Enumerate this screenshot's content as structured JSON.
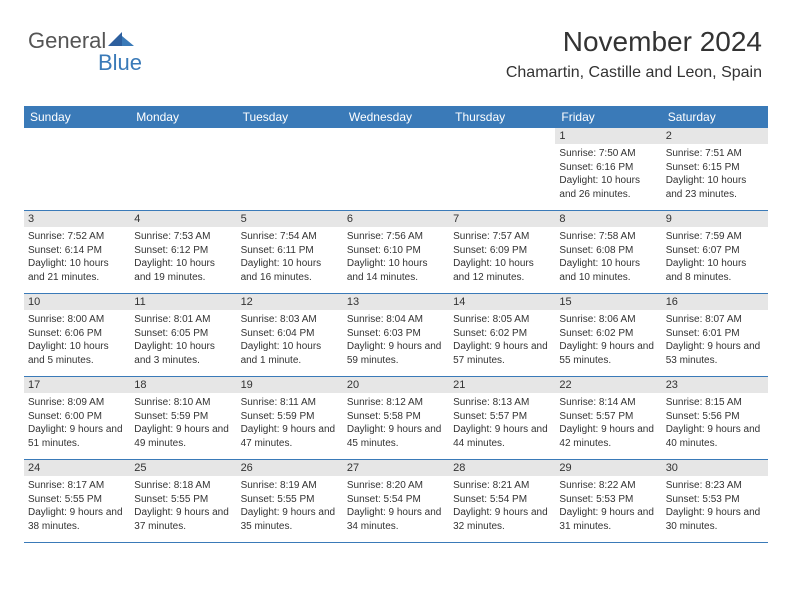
{
  "logo": {
    "text1": "General",
    "text2": "Blue"
  },
  "title": "November 2024",
  "location": "Chamartin, Castille and Leon, Spain",
  "colors": {
    "header_bg": "#3a7ab8",
    "header_text": "#ffffff",
    "daynum_bg": "#e6e6e6",
    "border": "#3a7ab8",
    "text": "#333333",
    "logo_gray": "#555555",
    "logo_blue": "#3a7ab8"
  },
  "day_names": [
    "Sunday",
    "Monday",
    "Tuesday",
    "Wednesday",
    "Thursday",
    "Friday",
    "Saturday"
  ],
  "weeks": [
    [
      {
        "n": "",
        "sunrise": "",
        "sunset": "",
        "daylight": ""
      },
      {
        "n": "",
        "sunrise": "",
        "sunset": "",
        "daylight": ""
      },
      {
        "n": "",
        "sunrise": "",
        "sunset": "",
        "daylight": ""
      },
      {
        "n": "",
        "sunrise": "",
        "sunset": "",
        "daylight": ""
      },
      {
        "n": "",
        "sunrise": "",
        "sunset": "",
        "daylight": ""
      },
      {
        "n": "1",
        "sunrise": "Sunrise: 7:50 AM",
        "sunset": "Sunset: 6:16 PM",
        "daylight": "Daylight: 10 hours and 26 minutes."
      },
      {
        "n": "2",
        "sunrise": "Sunrise: 7:51 AM",
        "sunset": "Sunset: 6:15 PM",
        "daylight": "Daylight: 10 hours and 23 minutes."
      }
    ],
    [
      {
        "n": "3",
        "sunrise": "Sunrise: 7:52 AM",
        "sunset": "Sunset: 6:14 PM",
        "daylight": "Daylight: 10 hours and 21 minutes."
      },
      {
        "n": "4",
        "sunrise": "Sunrise: 7:53 AM",
        "sunset": "Sunset: 6:12 PM",
        "daylight": "Daylight: 10 hours and 19 minutes."
      },
      {
        "n": "5",
        "sunrise": "Sunrise: 7:54 AM",
        "sunset": "Sunset: 6:11 PM",
        "daylight": "Daylight: 10 hours and 16 minutes."
      },
      {
        "n": "6",
        "sunrise": "Sunrise: 7:56 AM",
        "sunset": "Sunset: 6:10 PM",
        "daylight": "Daylight: 10 hours and 14 minutes."
      },
      {
        "n": "7",
        "sunrise": "Sunrise: 7:57 AM",
        "sunset": "Sunset: 6:09 PM",
        "daylight": "Daylight: 10 hours and 12 minutes."
      },
      {
        "n": "8",
        "sunrise": "Sunrise: 7:58 AM",
        "sunset": "Sunset: 6:08 PM",
        "daylight": "Daylight: 10 hours and 10 minutes."
      },
      {
        "n": "9",
        "sunrise": "Sunrise: 7:59 AM",
        "sunset": "Sunset: 6:07 PM",
        "daylight": "Daylight: 10 hours and 8 minutes."
      }
    ],
    [
      {
        "n": "10",
        "sunrise": "Sunrise: 8:00 AM",
        "sunset": "Sunset: 6:06 PM",
        "daylight": "Daylight: 10 hours and 5 minutes."
      },
      {
        "n": "11",
        "sunrise": "Sunrise: 8:01 AM",
        "sunset": "Sunset: 6:05 PM",
        "daylight": "Daylight: 10 hours and 3 minutes."
      },
      {
        "n": "12",
        "sunrise": "Sunrise: 8:03 AM",
        "sunset": "Sunset: 6:04 PM",
        "daylight": "Daylight: 10 hours and 1 minute."
      },
      {
        "n": "13",
        "sunrise": "Sunrise: 8:04 AM",
        "sunset": "Sunset: 6:03 PM",
        "daylight": "Daylight: 9 hours and 59 minutes."
      },
      {
        "n": "14",
        "sunrise": "Sunrise: 8:05 AM",
        "sunset": "Sunset: 6:02 PM",
        "daylight": "Daylight: 9 hours and 57 minutes."
      },
      {
        "n": "15",
        "sunrise": "Sunrise: 8:06 AM",
        "sunset": "Sunset: 6:02 PM",
        "daylight": "Daylight: 9 hours and 55 minutes."
      },
      {
        "n": "16",
        "sunrise": "Sunrise: 8:07 AM",
        "sunset": "Sunset: 6:01 PM",
        "daylight": "Daylight: 9 hours and 53 minutes."
      }
    ],
    [
      {
        "n": "17",
        "sunrise": "Sunrise: 8:09 AM",
        "sunset": "Sunset: 6:00 PM",
        "daylight": "Daylight: 9 hours and 51 minutes."
      },
      {
        "n": "18",
        "sunrise": "Sunrise: 8:10 AM",
        "sunset": "Sunset: 5:59 PM",
        "daylight": "Daylight: 9 hours and 49 minutes."
      },
      {
        "n": "19",
        "sunrise": "Sunrise: 8:11 AM",
        "sunset": "Sunset: 5:59 PM",
        "daylight": "Daylight: 9 hours and 47 minutes."
      },
      {
        "n": "20",
        "sunrise": "Sunrise: 8:12 AM",
        "sunset": "Sunset: 5:58 PM",
        "daylight": "Daylight: 9 hours and 45 minutes."
      },
      {
        "n": "21",
        "sunrise": "Sunrise: 8:13 AM",
        "sunset": "Sunset: 5:57 PM",
        "daylight": "Daylight: 9 hours and 44 minutes."
      },
      {
        "n": "22",
        "sunrise": "Sunrise: 8:14 AM",
        "sunset": "Sunset: 5:57 PM",
        "daylight": "Daylight: 9 hours and 42 minutes."
      },
      {
        "n": "23",
        "sunrise": "Sunrise: 8:15 AM",
        "sunset": "Sunset: 5:56 PM",
        "daylight": "Daylight: 9 hours and 40 minutes."
      }
    ],
    [
      {
        "n": "24",
        "sunrise": "Sunrise: 8:17 AM",
        "sunset": "Sunset: 5:55 PM",
        "daylight": "Daylight: 9 hours and 38 minutes."
      },
      {
        "n": "25",
        "sunrise": "Sunrise: 8:18 AM",
        "sunset": "Sunset: 5:55 PM",
        "daylight": "Daylight: 9 hours and 37 minutes."
      },
      {
        "n": "26",
        "sunrise": "Sunrise: 8:19 AM",
        "sunset": "Sunset: 5:55 PM",
        "daylight": "Daylight: 9 hours and 35 minutes."
      },
      {
        "n": "27",
        "sunrise": "Sunrise: 8:20 AM",
        "sunset": "Sunset: 5:54 PM",
        "daylight": "Daylight: 9 hours and 34 minutes."
      },
      {
        "n": "28",
        "sunrise": "Sunrise: 8:21 AM",
        "sunset": "Sunset: 5:54 PM",
        "daylight": "Daylight: 9 hours and 32 minutes."
      },
      {
        "n": "29",
        "sunrise": "Sunrise: 8:22 AM",
        "sunset": "Sunset: 5:53 PM",
        "daylight": "Daylight: 9 hours and 31 minutes."
      },
      {
        "n": "30",
        "sunrise": "Sunrise: 8:23 AM",
        "sunset": "Sunset: 5:53 PM",
        "daylight": "Daylight: 9 hours and 30 minutes."
      }
    ]
  ]
}
